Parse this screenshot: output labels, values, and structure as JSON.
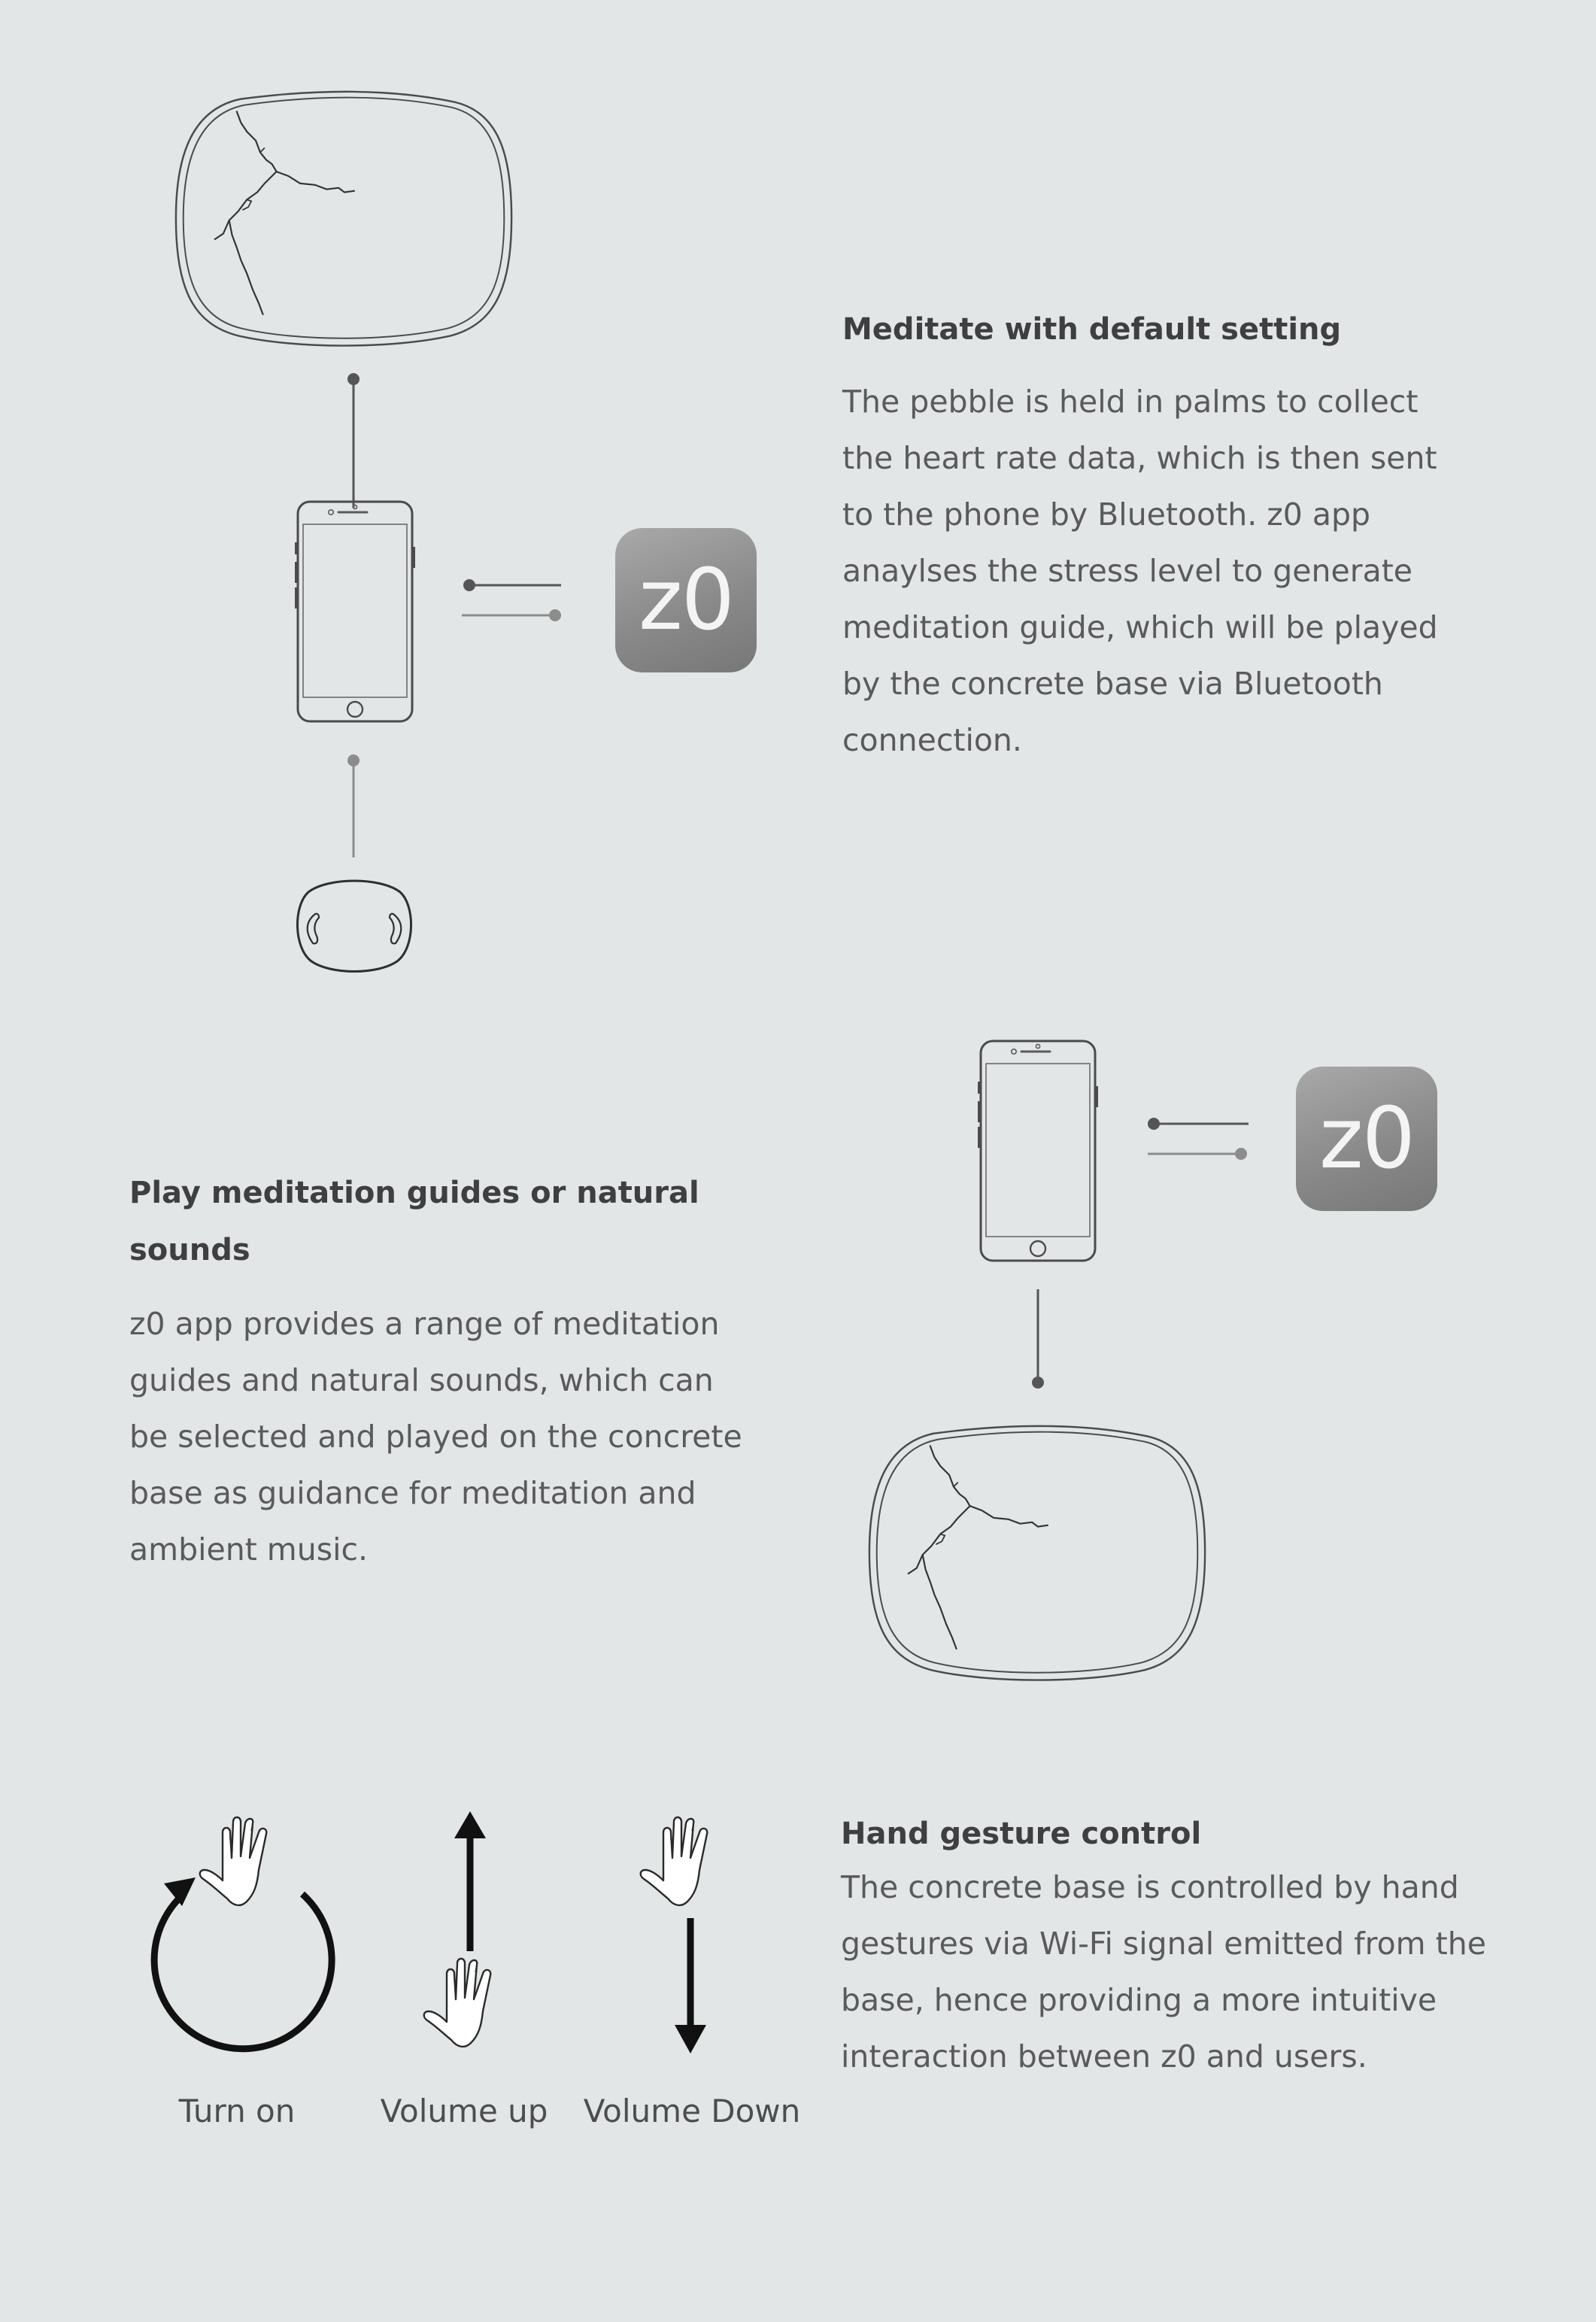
{
  "sections": {
    "default_meditation": {
      "heading": "Meditate with default setting",
      "body": "The pebble is held in palms to collect the heart rate data, which is then sent to the phone by Bluetooth. z0 app anaylses the stress level to generate meditation guide, which will be played  by the concrete base via Bluetooth connection."
    },
    "play_guides": {
      "heading": "Play meditation guides or natural sounds",
      "body": "z0 app provides a range of meditation guides and natural sounds, which can be selected and played on the concrete base as guidance for meditation and ambient music."
    },
    "gesture": {
      "heading": "Hand gesture control",
      "body": "The concrete base is controlled by hand gestures via Wi-Fi signal emitted from the base, hence providing a more intuitive interaction between z0 and users."
    }
  },
  "app": {
    "name": "z0"
  },
  "gestures": [
    {
      "label": "Turn on",
      "icon": "circular-arrow-hand-icon"
    },
    {
      "label": "Volume up",
      "icon": "up-arrow-hand-icon"
    },
    {
      "label": "Volume Down",
      "icon": "down-arrow-hand-icon"
    }
  ],
  "colors": {
    "background": "#e3e6e6",
    "heading": "#3f3f41",
    "body": "#5a5a5c",
    "line_dark": "#555555",
    "line_light": "#8c8c8c"
  }
}
